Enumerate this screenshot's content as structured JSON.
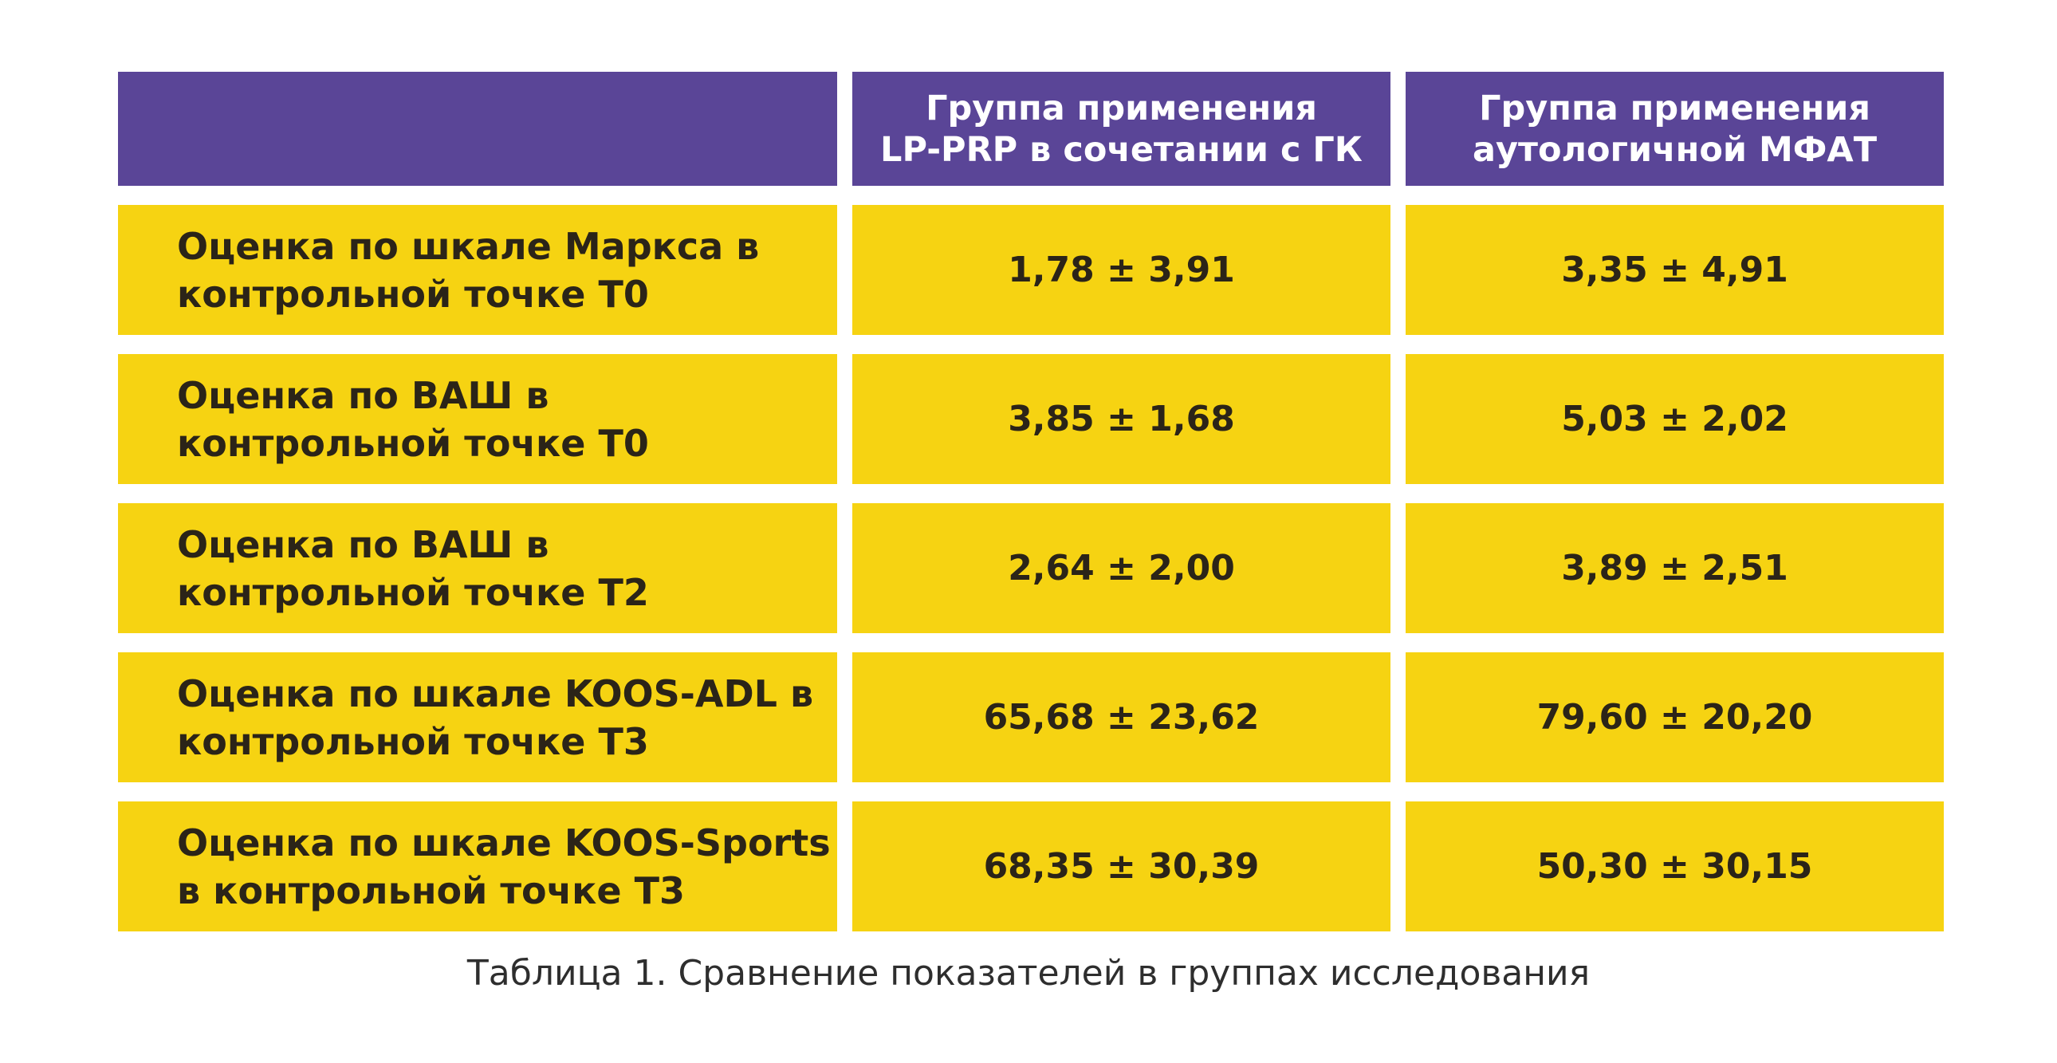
{
  "table": {
    "header": {
      "col1": "",
      "col2": [
        "Группа применения",
        "LP-PRP в сочетании с ГК"
      ],
      "col3": [
        "Группа применения",
        "аутологичной МФАТ"
      ]
    },
    "rows": [
      {
        "label": [
          "Оценка по шкале Маркса в",
          "контрольной точке Т0"
        ],
        "lp_prp": "1,78 ± 3,91",
        "mfat": "3,35 ± 4,91"
      },
      {
        "label": [
          "Оценка по ВАШ в",
          "контрольной точке Т0"
        ],
        "lp_prp": "3,85 ± 1,68",
        "mfat": "5,03 ± 2,02"
      },
      {
        "label": [
          "Оценка по ВАШ в",
          "контрольной точке Т2"
        ],
        "lp_prp": "2,64 ± 2,00",
        "mfat": "3,89 ± 2,51"
      },
      {
        "label": [
          "Оценка по шкале KOOS-ADL в",
          "контрольной точке Т3"
        ],
        "lp_prp": "65,68 ± 23,62",
        "mfat": "79,60 ± 20,20"
      },
      {
        "label": [
          "Оценка по шкале KOOS-Sports",
          "в контрольной точке Т3"
        ],
        "lp_prp": "68,35 ± 30,39",
        "mfat": "50,30 ± 30,15"
      }
    ]
  },
  "caption": "Таблица 1. Сравнение показателей в группах исследования",
  "colors": {
    "header_bg": "#5a4597",
    "cell_bg": "#f6d312",
    "text_dark": "#2b2418"
  }
}
